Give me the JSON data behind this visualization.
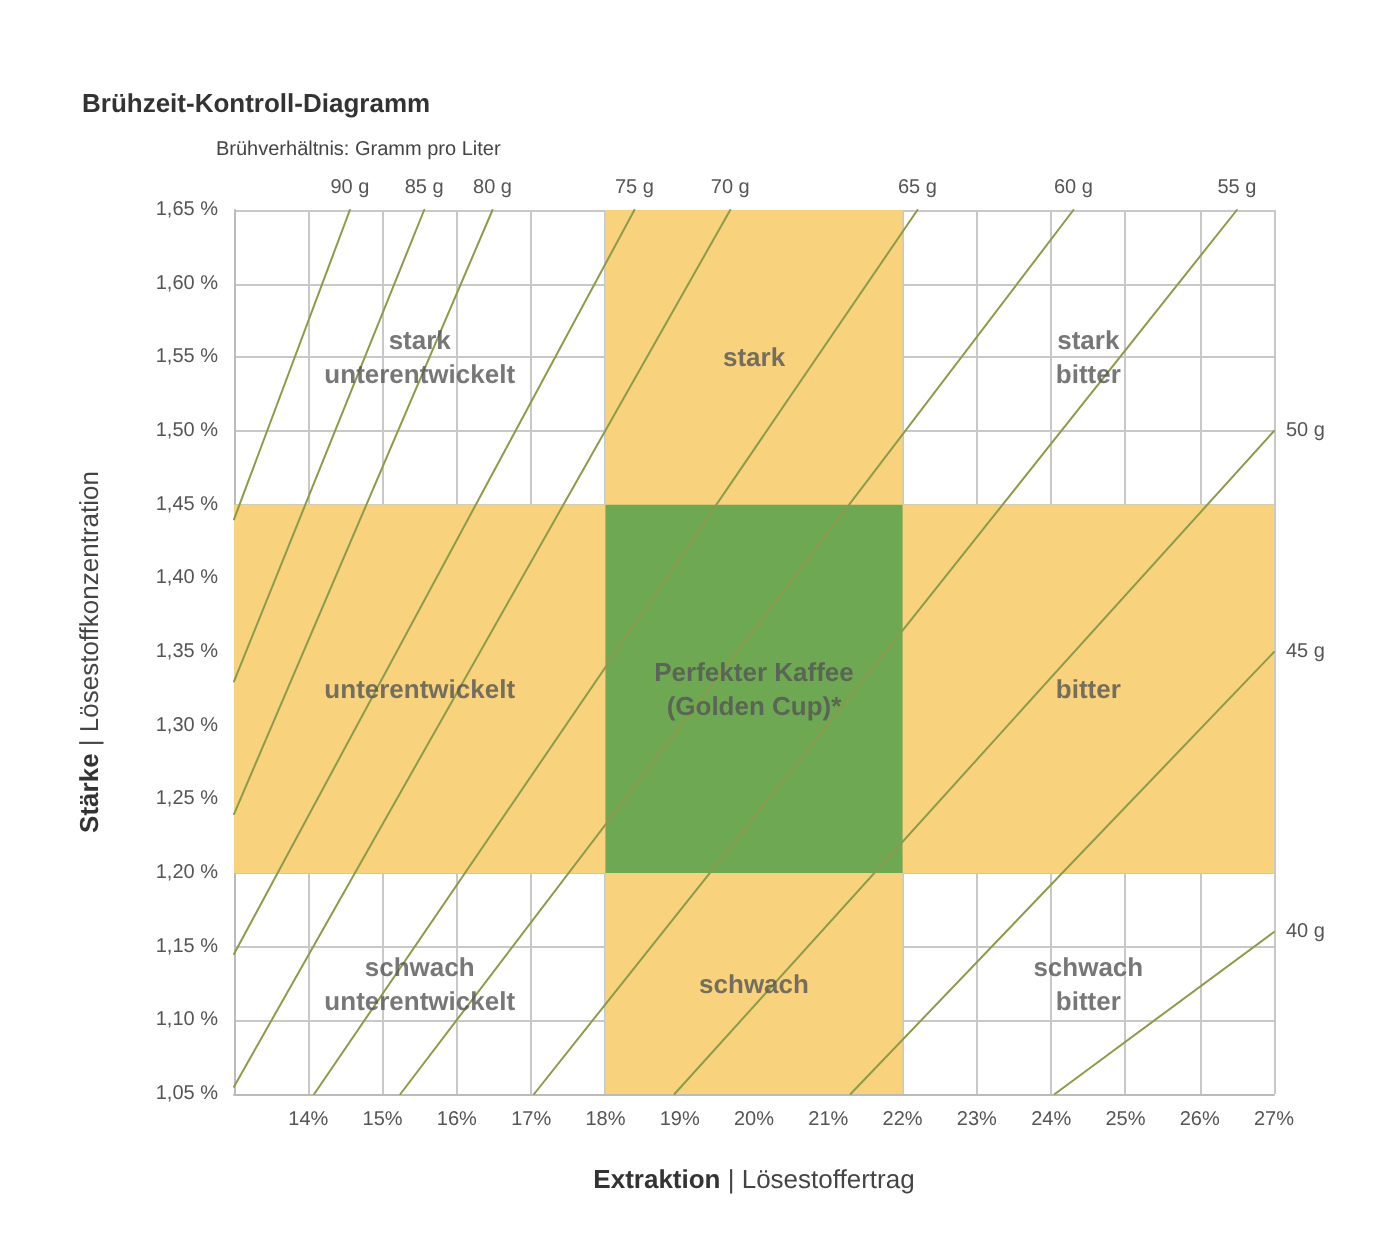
{
  "chart_data": {
    "type": "line",
    "title": "Brühzeit-Kontroll-Diagramm",
    "xlabel": "Extraktion | Lösestoffertrag",
    "ylabel": "Stärke | Lösestoffkonzentration",
    "xlim": [
      13,
      27
    ],
    "ylim": [
      1.05,
      1.65
    ],
    "xticks": [
      {
        "value": 14,
        "label": "14%"
      },
      {
        "value": 15,
        "label": "15%"
      },
      {
        "value": 16,
        "label": "16%"
      },
      {
        "value": 17,
        "label": "17%"
      },
      {
        "value": 18,
        "label": "18%"
      },
      {
        "value": 19,
        "label": "19%"
      },
      {
        "value": 20,
        "label": "20%"
      },
      {
        "value": 21,
        "label": "21%"
      },
      {
        "value": 22,
        "label": "22%"
      },
      {
        "value": 23,
        "label": "23%"
      },
      {
        "value": 24,
        "label": "24%"
      },
      {
        "value": 25,
        "label": "25%"
      },
      {
        "value": 26,
        "label": "26%"
      },
      {
        "value": 27,
        "label": "27%"
      }
    ],
    "yticks": [
      {
        "value": 1.05,
        "label": "1,05 %"
      },
      {
        "value": 1.1,
        "label": "1,10 %"
      },
      {
        "value": 1.15,
        "label": "1,15 %"
      },
      {
        "value": 1.2,
        "label": "1,20 %"
      },
      {
        "value": 1.25,
        "label": "1,25 %"
      },
      {
        "value": 1.3,
        "label": "1,30 %"
      },
      {
        "value": 1.35,
        "label": "1,35 %"
      },
      {
        "value": 1.4,
        "label": "1,40 %"
      },
      {
        "value": 1.45,
        "label": "1,45 %"
      },
      {
        "value": 1.5,
        "label": "1,50 %"
      },
      {
        "value": 1.55,
        "label": "1,55 %"
      },
      {
        "value": 1.6,
        "label": "1,60 %"
      },
      {
        "value": 1.65,
        "label": "1,65 %"
      }
    ],
    "grid": true,
    "legend": false,
    "marker": "none",
    "line_style": "solid",
    "series": [
      {
        "name": "90 g",
        "color": "#8c9a4b",
        "x": [
          13,
          14.56
        ],
        "values": [
          1.44,
          1.65
        ]
      },
      {
        "name": "85 g",
        "color": "#8c9a4b",
        "x": [
          13,
          15.56
        ],
        "values": [
          1.33,
          1.65
        ]
      },
      {
        "name": "80 g",
        "color": "#8c9a4b",
        "x": [
          13,
          16.48
        ],
        "values": [
          1.24,
          1.65
        ]
      },
      {
        "name": "75 g",
        "color": "#8c9a4b",
        "x": [
          13,
          18.39
        ],
        "values": [
          1.145,
          1.65
        ]
      },
      {
        "name": "70 g",
        "color": "#8c9a4b",
        "x": [
          13,
          19.68
        ],
        "values": [
          1.055,
          1.65
        ]
      },
      {
        "name": "65 g",
        "color": "#8c9a4b",
        "x": [
          14.08,
          22.2
        ],
        "values": [
          1.05,
          1.65
        ]
      },
      {
        "name": "60 g",
        "color": "#8c9a4b",
        "x": [
          15.24,
          24.3
        ],
        "values": [
          1.05,
          1.65
        ]
      },
      {
        "name": "55 g",
        "color": "#8c9a4b",
        "x": [
          17.04,
          26.5
        ],
        "values": [
          1.05,
          1.65
        ]
      },
      {
        "name": "50 g",
        "color": "#8c9a4b",
        "x": [
          18.93,
          27
        ],
        "values": [
          1.05,
          1.5
        ]
      },
      {
        "name": "45 g",
        "color": "#8c9a4b",
        "x": [
          21.3,
          27
        ],
        "values": [
          1.05,
          1.35
        ]
      },
      {
        "name": "40 g",
        "color": "#8c9a4b",
        "x": [
          24.05,
          27
        ],
        "values": [
          1.05,
          1.16
        ]
      }
    ],
    "bands": [
      {
        "axis": "x",
        "from": 18,
        "to": 22,
        "color": "#f8d27c"
      },
      {
        "axis": "y",
        "from": 1.2,
        "to": 1.45,
        "color": "#f8d27c"
      },
      {
        "axis": "x",
        "from": 18,
        "to": 22,
        "color": "#6fa853"
      }
    ],
    "annotations": [
      "Brühverhältnis: Gramm pro Liter",
      "stark\nunterentwickelt",
      "stark",
      "stark\nbitter",
      "unterentwickelt",
      "Perfekter Kaffee\n(Golden Cup)*",
      "bitter",
      "schwach\nunterentwickelt",
      "schwach",
      "schwach\nbitter"
    ]
  }
}
